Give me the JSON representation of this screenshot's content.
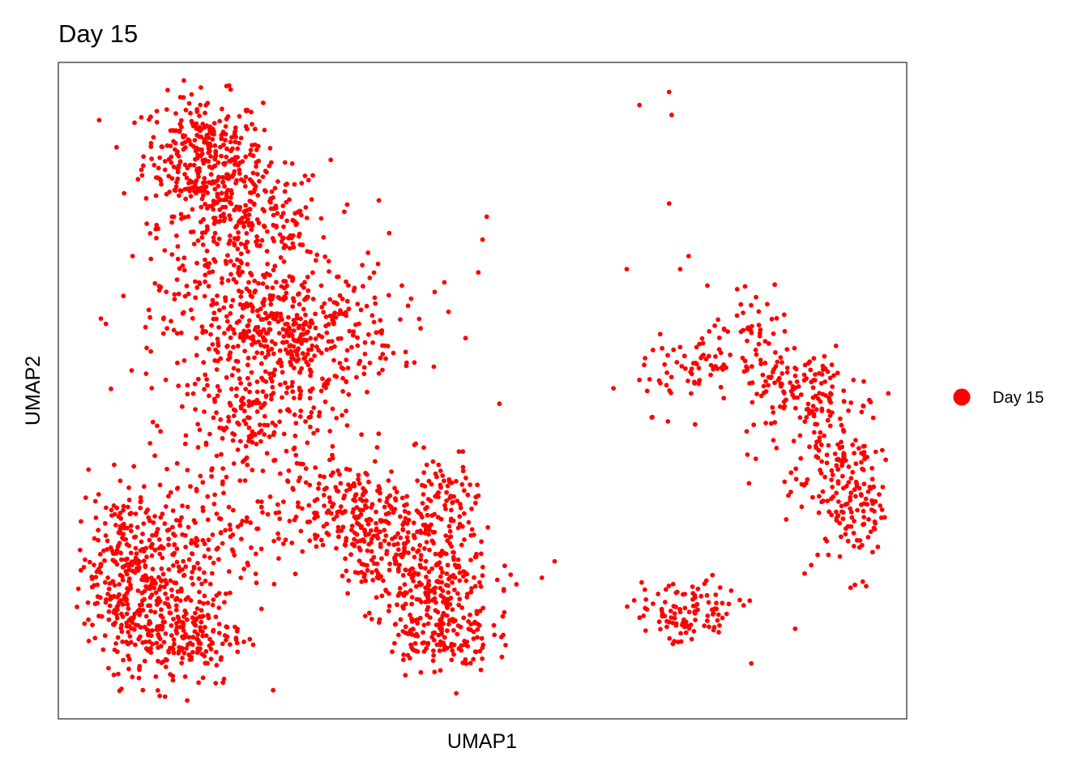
{
  "chart_data": {
    "type": "scatter",
    "title": "Day 15",
    "xlabel": "UMAP1",
    "ylabel": "UMAP2",
    "xlim": [
      0,
      100
    ],
    "ylim": [
      0,
      100
    ],
    "grid": false,
    "ticks": false,
    "legend_position": "right",
    "series": [
      {
        "name": "Day 15",
        "color": "#ff0000",
        "clusters": [
          {
            "cx": 17,
            "cy": 86,
            "sx": 3.5,
            "sy": 4.5,
            "n": 300
          },
          {
            "cx": 22,
            "cy": 75,
            "sx": 5,
            "sy": 5,
            "n": 300
          },
          {
            "cx": 26,
            "cy": 59,
            "sx": 7,
            "sy": 5,
            "n": 500
          },
          {
            "cx": 24,
            "cy": 45,
            "sx": 5,
            "sy": 5,
            "n": 200
          },
          {
            "cx": 8,
            "cy": 23,
            "sx": 3,
            "sy": 6,
            "n": 300
          },
          {
            "cx": 14,
            "cy": 13,
            "sx": 4,
            "sy": 4,
            "n": 250
          },
          {
            "cx": 17,
            "cy": 27,
            "sx": 4,
            "sy": 6,
            "n": 150
          },
          {
            "cx": 35,
            "cy": 31,
            "sx": 4.5,
            "sy": 4,
            "n": 250
          },
          {
            "cx": 43,
            "cy": 23,
            "sx": 4,
            "sy": 4,
            "n": 250
          },
          {
            "cx": 45,
            "cy": 13,
            "sx": 3,
            "sy": 3,
            "n": 160
          },
          {
            "cx": 46,
            "cy": 34,
            "sx": 2,
            "sy": 3.5,
            "n": 70
          },
          {
            "cx": 74,
            "cy": 53,
            "sx": 3,
            "sy": 3,
            "n": 60
          },
          {
            "cx": 82,
            "cy": 58,
            "sx": 3,
            "sy": 3,
            "n": 50
          },
          {
            "cx": 87,
            "cy": 50,
            "sx": 3.5,
            "sy": 3.5,
            "n": 120
          },
          {
            "cx": 91,
            "cy": 41,
            "sx": 3.5,
            "sy": 4.5,
            "n": 120
          },
          {
            "cx": 94,
            "cy": 32,
            "sx": 2.5,
            "sy": 5,
            "n": 110
          },
          {
            "cx": 74,
            "cy": 16,
            "sx": 3,
            "sy": 2.5,
            "n": 110
          }
        ],
        "outliers": [
          [
            68.5,
            93.5
          ],
          [
            72,
            95.5
          ],
          [
            72.3,
            92
          ],
          [
            72,
            78.5
          ],
          [
            67,
            68.5
          ],
          [
            74.3,
            70.5
          ],
          [
            73.3,
            68.5
          ],
          [
            76.5,
            66
          ],
          [
            50.5,
            76.5
          ],
          [
            50,
            73
          ],
          [
            49.5,
            68
          ],
          [
            39,
            74
          ],
          [
            36.5,
            71
          ],
          [
            40.5,
            66
          ],
          [
            45.5,
            66.5
          ],
          [
            46,
            62
          ],
          [
            48,
            58
          ],
          [
            52,
            48
          ],
          [
            58.5,
            24
          ],
          [
            57,
            21.5
          ],
          [
            54,
            20.5
          ],
          [
            52.5,
            19.5
          ],
          [
            81.5,
            18
          ],
          [
            78,
            20
          ]
        ]
      }
    ]
  }
}
